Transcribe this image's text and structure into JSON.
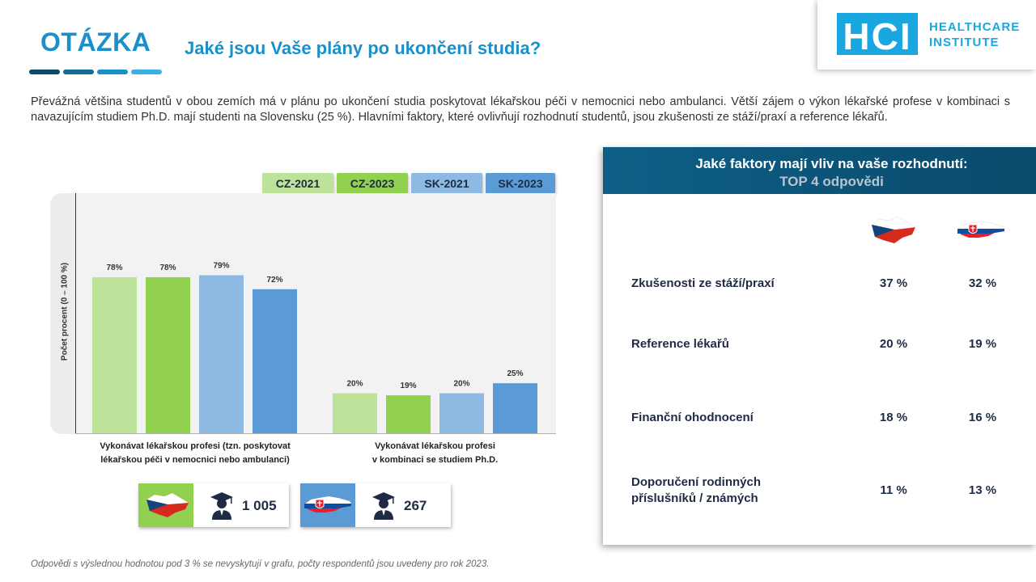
{
  "header": {
    "section_label": "OTÁZKA",
    "question": "Jaké jsou Vaše plány po ukončení studia?"
  },
  "logo": {
    "mark": "HCI",
    "line1": "HEALTHCARE",
    "line2": "INSTITUTE"
  },
  "intro": "Převážná většina studentů v obou zemích má v plánu po ukončení studia poskytovat lékařskou péči v nemocnici nebo ambulanci. Větší zájem o výkon lékařské profese v kombinaci s navazujícím studiem Ph.D. mají studenti na Slovensku (25 %). Hlavními faktory, které ovlivňují rozhodnutí studentů, jsou zkušenosti ze stáží/praxí a reference lékařů.",
  "chart_data": {
    "type": "bar",
    "ylabel": "Počet procent (0 – 100 %)",
    "ylim": [
      0,
      100
    ],
    "grid": false,
    "legend_position": "top-right",
    "categories": [
      [
        "Vykonávat lékařskou profesi (tzn. poskytovat",
        "lékařskou péči v nemocnici nebo ambulanci)"
      ],
      [
        "Vykonávat lékařskou profesi",
        "v kombinaci se studiem Ph.D."
      ]
    ],
    "series": [
      {
        "name": "CZ-2021",
        "color": "#bde39a",
        "values": [
          78,
          20
        ],
        "labels": [
          "78%",
          "20%"
        ]
      },
      {
        "name": "CZ-2023",
        "color": "#92d050",
        "values": [
          78,
          19
        ],
        "labels": [
          "78%",
          "19%"
        ]
      },
      {
        "name": "SK-2021",
        "color": "#8db9e2",
        "values": [
          79,
          20
        ],
        "labels": [
          "79%",
          "20%"
        ]
      },
      {
        "name": "SK-2023",
        "color": "#5b9bd5",
        "values": [
          72,
          25
        ],
        "labels": [
          "72%",
          "25%"
        ]
      }
    ]
  },
  "respondents": [
    {
      "country": "CZ",
      "count": "1 005",
      "color": "#92d050",
      "icon": "graduate-icon"
    },
    {
      "country": "SK",
      "count": "267",
      "color": "#5b9bd5",
      "icon": "graduate-icon"
    }
  ],
  "footnote": "Odpovědi s výslednou hodnotou pod 3 % se nevyskytují v grafu, počty respondentů jsou uvedeny pro rok 2023.",
  "factors": {
    "title": "Jaké faktory mají vliv na vaše rozhodnutí:",
    "subtitle": "TOP 4 odpovědi",
    "rows": [
      {
        "label": "Zkušenosti ze stáží/praxí",
        "cz": "37 %",
        "sk": "32 %"
      },
      {
        "label": "Reference lékařů",
        "cz": "20 %",
        "sk": "19 %"
      },
      {
        "label": "Finanční ohodnocení",
        "cz": "18 %",
        "sk": "16 %"
      },
      {
        "label": "Doporučení rodinných\npříslušníků / známých",
        "cz": "11 %",
        "sk": "13 %"
      }
    ]
  }
}
